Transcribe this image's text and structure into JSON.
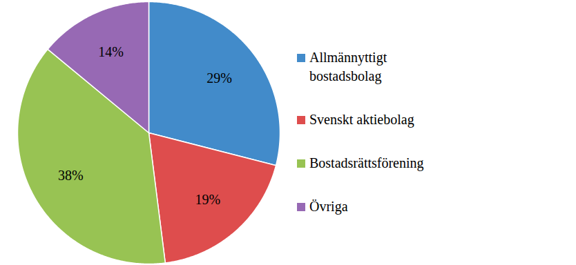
{
  "chart_data": {
    "type": "pie",
    "categories": [
      "Allmännyttigt bostadsbolag",
      "Svenskt aktiebolag",
      "Bostadsrättsförening",
      "Övriga"
    ],
    "values": [
      29,
      19,
      38,
      14
    ],
    "value_labels": [
      "29%",
      "19%",
      "38%",
      "14%"
    ],
    "colors": [
      "#428bca",
      "#de4d4d",
      "#98c353",
      "#9769b4"
    ],
    "data_labels": true,
    "legend": "right"
  }
}
